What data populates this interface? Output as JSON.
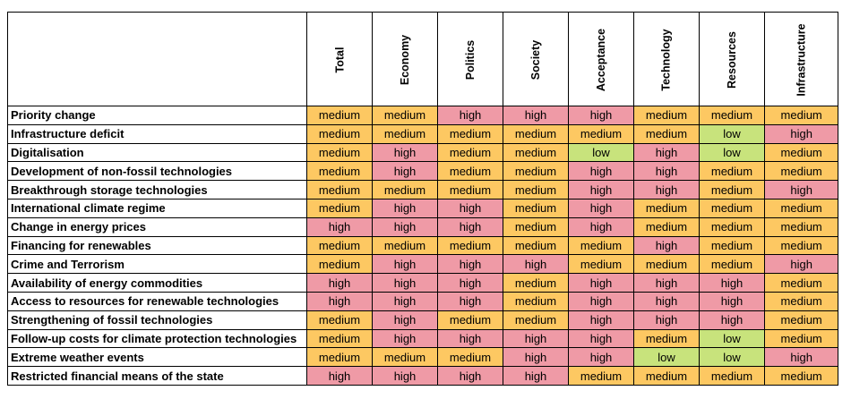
{
  "colors": {
    "high": "#ef9aa6",
    "medium": "#fdc862",
    "low": "#c8e37c"
  },
  "columns": [
    "Total",
    "Economy",
    "Politics",
    "Society",
    "Acceptance",
    "Technology",
    "Resources",
    "Infrastructure"
  ],
  "rows": [
    {
      "label": "Priority change",
      "values": [
        "medium",
        "medium",
        "high",
        "high",
        "high",
        "medium",
        "medium",
        "medium"
      ]
    },
    {
      "label": "Infrastructure deficit",
      "values": [
        "medium",
        "medium",
        "medium",
        "medium",
        "medium",
        "medium",
        "low",
        "high"
      ]
    },
    {
      "label": "Digitalisation",
      "values": [
        "medium",
        "high",
        "medium",
        "medium",
        "low",
        "high",
        "low",
        "medium"
      ]
    },
    {
      "label": "Development of non-fossil technologies",
      "values": [
        "medium",
        "high",
        "medium",
        "medium",
        "high",
        "high",
        "medium",
        "medium"
      ]
    },
    {
      "label": "Breakthrough storage technologies",
      "values": [
        "medium",
        "medium",
        "medium",
        "medium",
        "high",
        "high",
        "medium",
        "high"
      ]
    },
    {
      "label": "International climate regime",
      "values": [
        "medium",
        "high",
        "high",
        "medium",
        "high",
        "medium",
        "medium",
        "medium"
      ]
    },
    {
      "label": "Change in energy prices",
      "values": [
        "high",
        "high",
        "high",
        "medium",
        "high",
        "medium",
        "medium",
        "medium"
      ]
    },
    {
      "label": "Financing for renewables",
      "values": [
        "medium",
        "medium",
        "medium",
        "medium",
        "medium",
        "high",
        "medium",
        "medium"
      ]
    },
    {
      "label": "Crime and Terrorism",
      "values": [
        "medium",
        "high",
        "high",
        "high",
        "medium",
        "medium",
        "medium",
        "high"
      ]
    },
    {
      "label": "Availability of energy commodities",
      "values": [
        "high",
        "high",
        "high",
        "medium",
        "high",
        "high",
        "high",
        "medium"
      ]
    },
    {
      "label": "Access to resources for renewable technologies",
      "values": [
        "high",
        "high",
        "high",
        "medium",
        "high",
        "high",
        "high",
        "medium"
      ]
    },
    {
      "label": "Strengthening of fossil technologies",
      "values": [
        "medium",
        "high",
        "medium",
        "medium",
        "high",
        "high",
        "high",
        "medium"
      ]
    },
    {
      "label": "Follow-up costs for climate protection technologies",
      "values": [
        "medium",
        "high",
        "high",
        "high",
        "high",
        "medium",
        "low",
        "medium"
      ]
    },
    {
      "label": "Extreme weather events",
      "values": [
        "medium",
        "medium",
        "medium",
        "high",
        "high",
        "low",
        "low",
        "high"
      ]
    },
    {
      "label": "Restricted financial means of the state",
      "values": [
        "high",
        "high",
        "high",
        "high",
        "medium",
        "medium",
        "medium",
        "medium"
      ]
    }
  ]
}
